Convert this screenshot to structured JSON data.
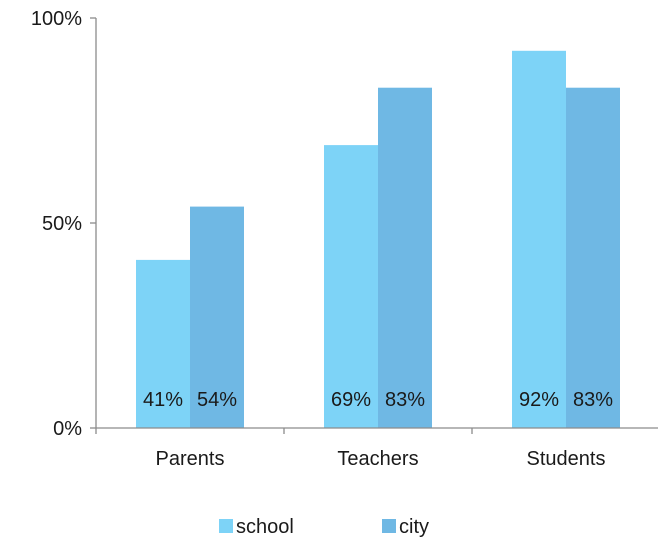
{
  "chart_data": {
    "type": "bar",
    "categories": [
      "Parents",
      "Teachers",
      "Students"
    ],
    "series": [
      {
        "name": "school",
        "values": [
          41,
          69,
          92
        ],
        "labels": [
          "41%",
          "69%",
          "92%"
        ],
        "color": "#7DD3F7"
      },
      {
        "name": "city",
        "values": [
          54,
          83,
          83
        ],
        "labels": [
          "54%",
          "83%",
          "83%"
        ],
        "color": "#6FB8E4"
      }
    ],
    "ylim": [
      0,
      100
    ],
    "yticks": [
      {
        "value": 0,
        "label": "0%"
      },
      {
        "value": 50,
        "label": "50%"
      },
      {
        "value": 100,
        "label": "100%"
      }
    ],
    "grid": false,
    "legend_position": "bottom"
  }
}
